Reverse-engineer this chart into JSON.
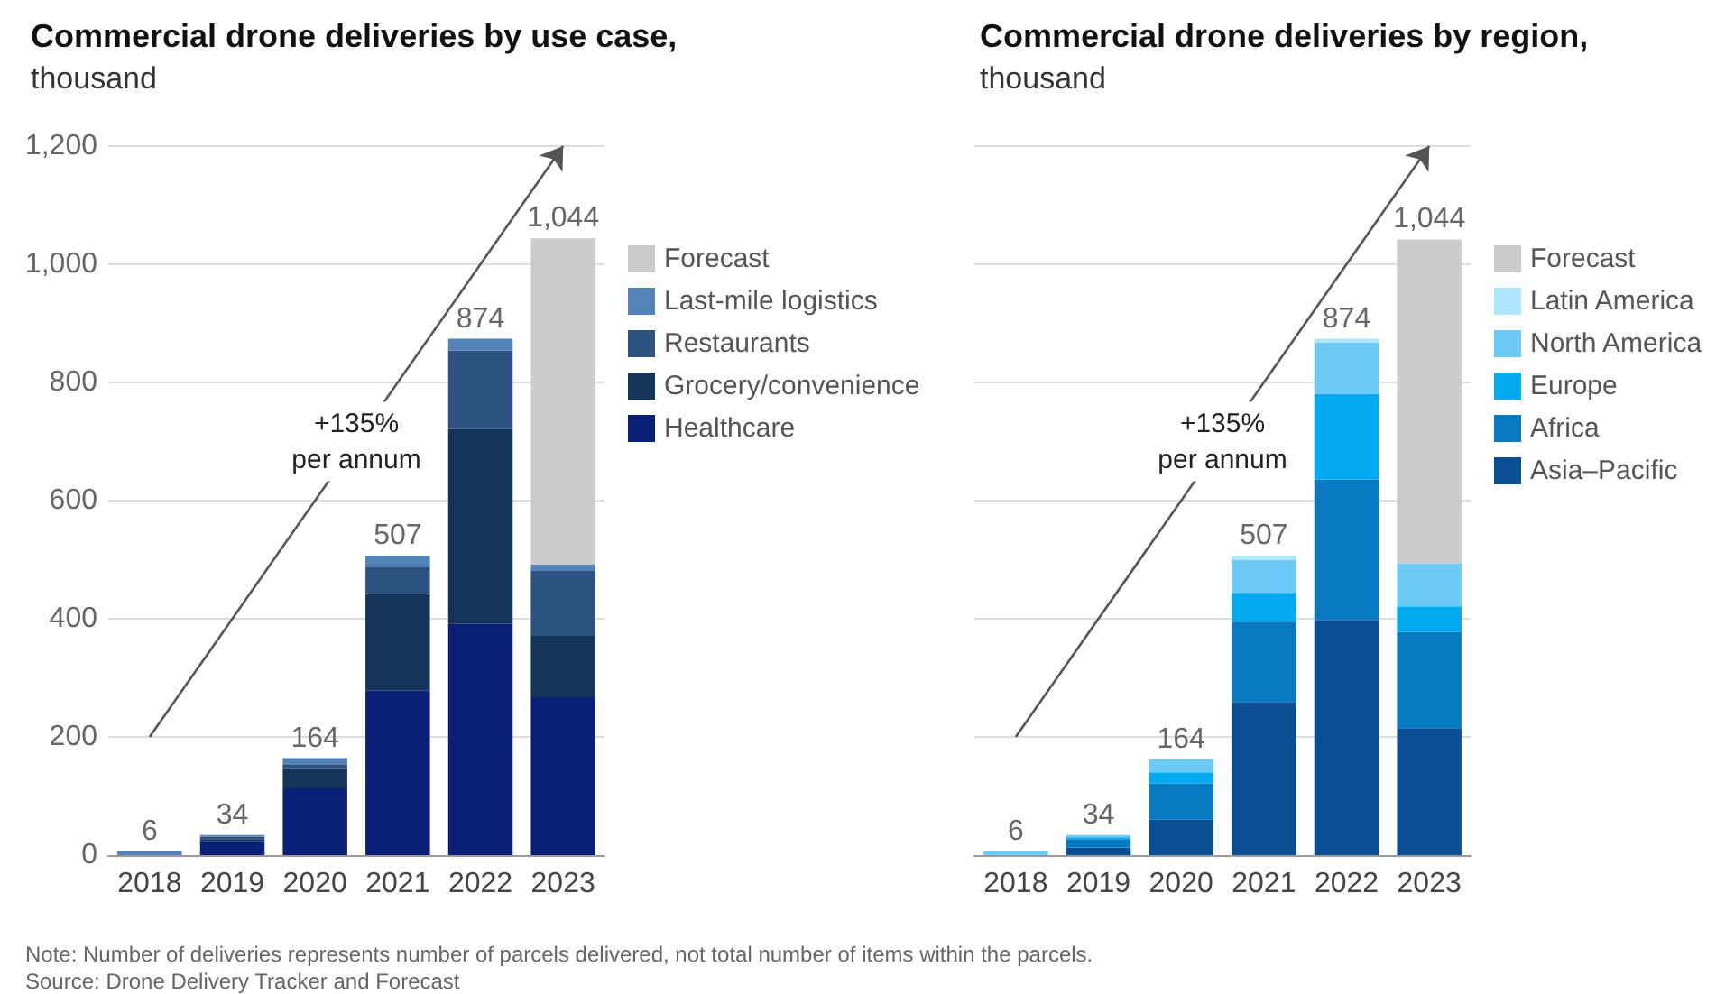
{
  "chart_data": [
    {
      "type": "bar",
      "title": "Commercial drone deliveries by use case,",
      "subtitle": "thousand",
      "categories": [
        "2018",
        "2019",
        "2020",
        "2021",
        "2022",
        "2023"
      ],
      "stacked": true,
      "legend": "right",
      "grid": "y",
      "ylim": [
        0,
        1200
      ],
      "yticks": [
        0,
        200,
        400,
        600,
        800,
        {
          "value": 1000,
          "label": "1,000"
        },
        {
          "value": 1200,
          "label": "1,200"
        }
      ],
      "totals": [
        "6",
        "34",
        "164",
        "507",
        "874",
        "1,044"
      ],
      "annotations": [
        "+135%\nper annum"
      ],
      "series": [
        {
          "name": "Healthcare",
          "color": "#0a1f78",
          "values": [
            null,
            24,
            113,
            279,
            392,
            267
          ]
        },
        {
          "name": "Grocery/convenience",
          "color": "#143459",
          "values": [
            null,
            3,
            34,
            163,
            329,
            104
          ]
        },
        {
          "name": "Restaurants",
          "color": "#2c5282",
          "values": [
            null,
            4,
            7,
            46,
            133,
            110
          ]
        },
        {
          "name": "Last-mile logistics",
          "color": "#5282b8",
          "values": [
            6,
            3,
            10,
            19,
            20,
            11
          ]
        },
        {
          "name": "Forecast",
          "color": "#cccccc",
          "values": [
            null,
            null,
            null,
            null,
            null,
            552
          ]
        }
      ]
    },
    {
      "type": "bar",
      "title": "Commercial drone deliveries by region,",
      "subtitle": "thousand",
      "categories": [
        "2018",
        "2019",
        "2020",
        "2021",
        "2022",
        "2023"
      ],
      "stacked": true,
      "legend": "right",
      "grid": "y",
      "tick_labels": "x",
      "ylim": [
        0,
        1200
      ],
      "yticks": [
        0,
        200,
        400,
        600,
        800,
        1000,
        1200
      ],
      "totals": [
        "6",
        "34",
        "164",
        "507",
        "874",
        "1,044"
      ],
      "annotations": [
        "+135%\nper annum",
        "Note: Number of deliveries represents number of parcels delivered, not total number of items within the parcels.",
        "Source: Drone Delivery Tracker and Forecast"
      ],
      "series": [
        {
          "name": "Asia–Pacific",
          "color": "#0a4f93",
          "values": [
            null,
            13,
            60,
            259,
            398,
            215
          ]
        },
        {
          "name": "Africa",
          "color": "#0779c0",
          "values": [
            null,
            14,
            61,
            136,
            238,
            163
          ]
        },
        {
          "name": "Europe",
          "color": "#00a9f0",
          "values": [
            null,
            3,
            19,
            49,
            145,
            43
          ]
        },
        {
          "name": "North America",
          "color": "#6ccbf6",
          "values": [
            6,
            4,
            22,
            56,
            87,
            73
          ]
        },
        {
          "name": "Latin America",
          "color": "#aee6fb",
          "values": [
            null,
            null,
            null,
            7,
            6,
            null
          ]
        },
        {
          "name": "Forecast",
          "color": "#cccccc",
          "values": [
            null,
            null,
            null,
            null,
            null,
            548
          ]
        }
      ]
    }
  ]
}
